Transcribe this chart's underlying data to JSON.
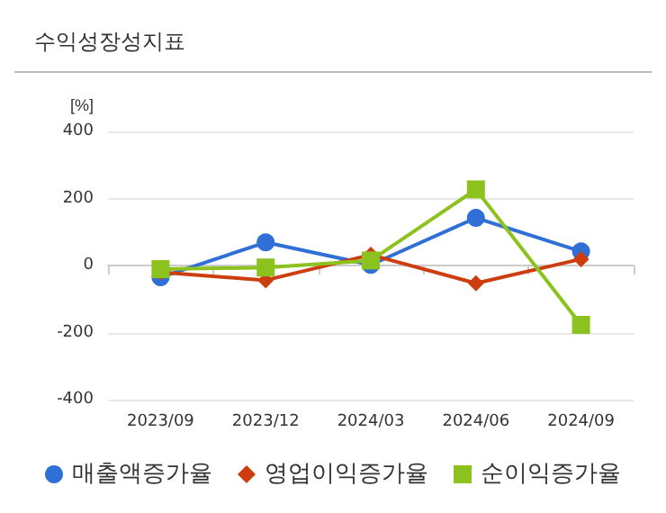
{
  "chart_data": {
    "type": "line",
    "title": "수익성장성지표",
    "ylabel": "[%]",
    "categories": [
      "2023/09",
      "2023/12",
      "2024/03",
      "2024/06",
      "2024/09"
    ],
    "series": [
      {
        "name": "매출액증가율",
        "color": "#2f6fd6",
        "marker": "circle",
        "values": [
          -35,
          69,
          2,
          142,
          42
        ]
      },
      {
        "name": "영업이익증가율",
        "color": "#cc3d10",
        "marker": "diamond",
        "values": [
          -20,
          -44,
          32,
          -53,
          19
        ]
      },
      {
        "name": "순이익증가율",
        "color": "#8cc21e",
        "marker": "square",
        "values": [
          -11,
          -6,
          15,
          227,
          -177
        ]
      }
    ],
    "ylim": [
      -400,
      400
    ],
    "yticks": [
      -400,
      -200,
      0,
      200,
      400
    ],
    "grid": "y",
    "legend": "bottom",
    "line_style": "solid"
  }
}
